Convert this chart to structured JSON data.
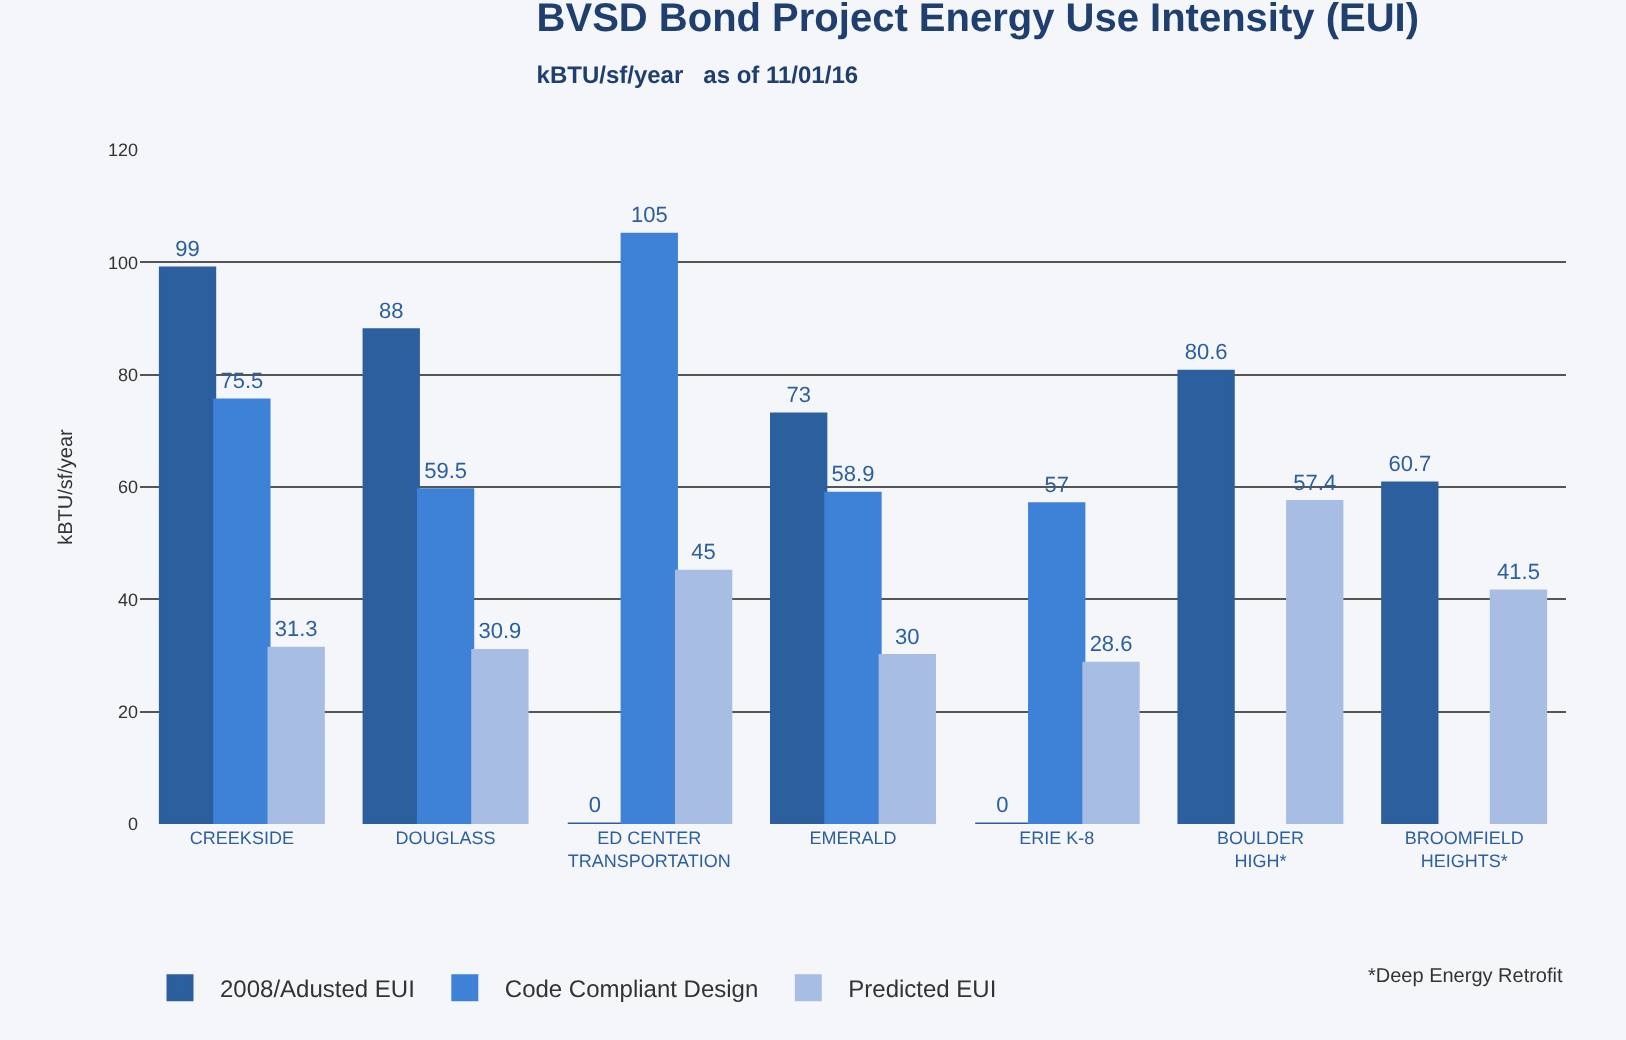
{
  "chart_data": {
    "type": "bar",
    "title": "BVSD Bond Project Energy Use Intensity (EUI)",
    "subtitle": "kBTU/sf/year   as of 11/01/16",
    "ylabel": "kBTU/sf/year",
    "categories": [
      "CREEKSIDE",
      "DOUGLASS",
      "ED CENTER TRANSPORTATION",
      "EMERALD",
      "ERIE K-8",
      "BOULDER HIGH*",
      "BROOMFIELD HEIGHTS*"
    ],
    "series": [
      {
        "name": "2008/Adusted EUI",
        "color": "#2c5f9e",
        "values": [
          99,
          88,
          0,
          73,
          0,
          80.6,
          60.7
        ]
      },
      {
        "name": "Code Compliant Design",
        "color": "#3d82d6",
        "values": [
          75.5,
          59.5,
          105,
          58.9,
          57,
          null,
          null
        ]
      },
      {
        "name": "Predicted EUI",
        "color": "#a7bde3",
        "values": [
          31.3,
          30.9,
          45,
          30,
          28.6,
          57.4,
          41.5
        ]
      }
    ],
    "ylim": [
      0,
      120
    ],
    "yticks": [
      0,
      20,
      40,
      60,
      80,
      100,
      120
    ],
    "grid": "y",
    "legend": "bottom",
    "data_labels": true,
    "annotations": [
      "*Deep Energy Retrofit"
    ]
  }
}
